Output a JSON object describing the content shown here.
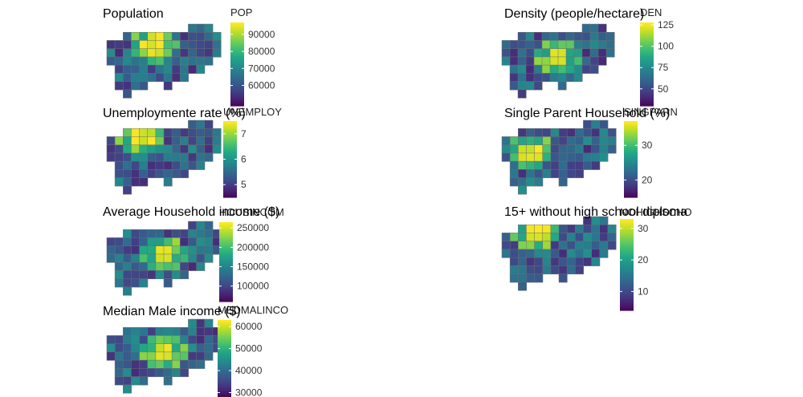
{
  "chart_data": [
    {
      "type": "heatmap",
      "subtype": "choropleth-map",
      "title": "Population",
      "legend": {
        "title": "POP",
        "min": 48000,
        "max": 97000,
        "ticks": [
          60000,
          70000,
          80000,
          90000
        ],
        "tick_labels": [
          "60000",
          "70000",
          "80000",
          "90000"
        ]
      },
      "colormap": "viridis",
      "bright_region": "center-north"
    },
    {
      "type": "heatmap",
      "subtype": "choropleth-map",
      "title": "Density (people/hectare)",
      "legend": {
        "title": "DEN",
        "min": 30,
        "max": 128,
        "ticks": [
          50,
          75,
          100,
          125
        ],
        "tick_labels": [
          "50",
          "75",
          "100",
          "125"
        ]
      },
      "colormap": "viridis",
      "bright_region": "center"
    },
    {
      "type": "heatmap",
      "subtype": "choropleth-map",
      "title": "Unemploymente rate (%)",
      "legend": {
        "title": "UNEMPLOY",
        "min": 4.5,
        "max": 7.5,
        "ticks": [
          5,
          6,
          7
        ],
        "tick_labels": [
          "5",
          "6",
          "7"
        ]
      },
      "colormap": "viridis",
      "bright_region": "north-west"
    },
    {
      "type": "heatmap",
      "subtype": "choropleth-map",
      "title": "Single Parent Household (%)",
      "legend": {
        "title": "SINGPARN",
        "min": 15,
        "max": 37,
        "ticks": [
          20,
          30
        ],
        "tick_labels": [
          "20",
          "30"
        ]
      },
      "colormap": "viridis",
      "bright_region": "west"
    },
    {
      "type": "heatmap",
      "subtype": "choropleth-map",
      "title": "Average Household income ($)",
      "legend": {
        "title": "HOUSINCOM",
        "min": 60000,
        "max": 265000,
        "ticks": [
          100000,
          150000,
          200000,
          250000
        ],
        "tick_labels": [
          "100000",
          "150000",
          "200000",
          "250000"
        ]
      },
      "colormap": "viridis",
      "bright_region": "center"
    },
    {
      "type": "heatmap",
      "subtype": "choropleth-map",
      "title": "15+ without high school diploma",
      "legend": {
        "title": "NOHIGHSCHO",
        "min": 4,
        "max": 33,
        "ticks": [
          10,
          20,
          30
        ],
        "tick_labels": [
          "10",
          "20",
          "30"
        ]
      },
      "colormap": "viridis",
      "bright_region": "north-west"
    },
    {
      "type": "heatmap",
      "subtype": "choropleth-map",
      "title": "Median Male income ($)",
      "legend": {
        "title": "MEDMALINCO",
        "min": 28000,
        "max": 63000,
        "ticks": [
          30000,
          40000,
          50000,
          60000
        ],
        "tick_labels": [
          "30000",
          "40000",
          "50000",
          "60000"
        ]
      },
      "colormap": "viridis",
      "bright_region": "center"
    }
  ]
}
